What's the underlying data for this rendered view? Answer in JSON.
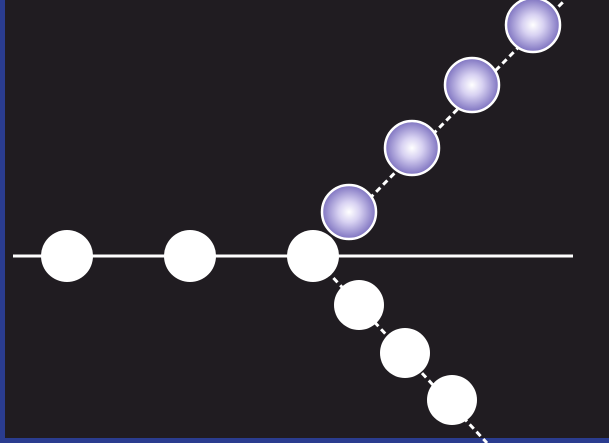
{
  "diagram": {
    "colors": {
      "background": "#201c21",
      "frame": "#2a3c8f",
      "line": "#ffffff",
      "incoming_particle": "#ffffff",
      "scattered_particle": "#ffffff",
      "emitted_particle_center": "#ffffff",
      "emitted_particle_edge": "#6f63b8"
    },
    "particle_counts": {
      "incoming": 3,
      "scattered_down": 3,
      "emitted_up": 4
    }
  }
}
